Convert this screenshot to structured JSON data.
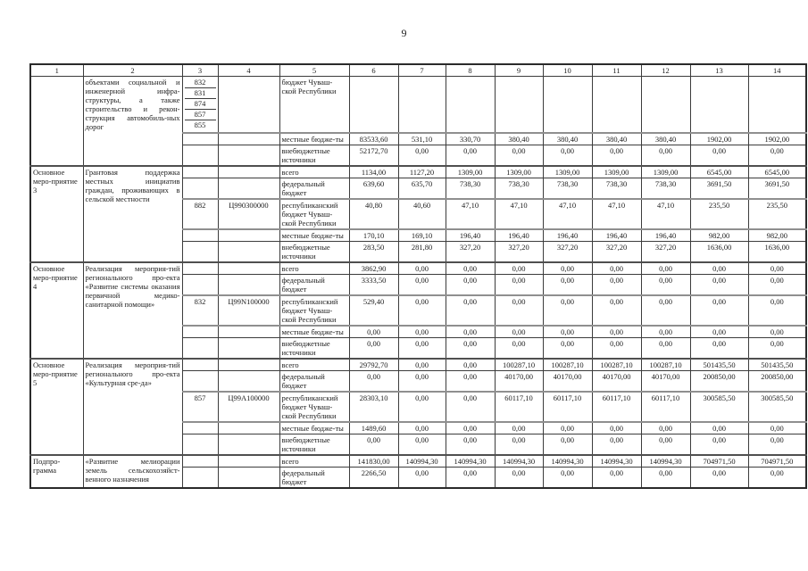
{
  "page": {
    "number": "9"
  },
  "table": {
    "column_headers": [
      "1",
      "2",
      "3",
      "4",
      "5",
      "6",
      "7",
      "8",
      "9",
      "10",
      "11",
      "12",
      "13",
      "14"
    ],
    "sections": [
      {
        "col1": "",
        "col2": "объектами социальной и инженерной инфра-структуры, а также строительство и рекон-струкция автомобиль-ных дорог",
        "rows": [
          {
            "stack": [
              "832",
              "831",
              "874",
              "857",
              "855"
            ],
            "code": "",
            "label": "бюджет Чуваш-ской Республики",
            "values": [
              "",
              "",
              "",
              "",
              "",
              "",
              "",
              "",
              ""
            ]
          },
          {
            "grbs": "",
            "code": "",
            "label": "местные бюдже-ты",
            "values": [
              "83533,60",
              "531,10",
              "330,70",
              "380,40",
              "380,40",
              "380,40",
              "380,40",
              "1902,00",
              "1902,00"
            ]
          },
          {
            "grbs": "",
            "code": "",
            "label": "внебюджетные источники",
            "values": [
              "52172,70",
              "0,00",
              "0,00",
              "0,00",
              "0,00",
              "0,00",
              "0,00",
              "0,00",
              "0,00"
            ]
          }
        ]
      },
      {
        "col1": "Основное меро-приятие 3",
        "col2": "Грантовая поддержка местных инициатив граждан, проживающих в сельской местности",
        "rows": [
          {
            "grbs": "",
            "code": "",
            "label": "всего",
            "values": [
              "1134,00",
              "1127,20",
              "1309,00",
              "1309,00",
              "1309,00",
              "1309,00",
              "1309,00",
              "6545,00",
              "6545,00"
            ]
          },
          {
            "grbs": "",
            "code": "",
            "label": "федеральный бюджет",
            "values": [
              "639,60",
              "635,70",
              "738,30",
              "738,30",
              "738,30",
              "738,30",
              "738,30",
              "3691,50",
              "3691,50"
            ]
          },
          {
            "grbs": "882",
            "code": "Ц990300000",
            "label": "республиканский бюджет Чуваш-ской Республики",
            "values": [
              "40,80",
              "40,60",
              "47,10",
              "47,10",
              "47,10",
              "47,10",
              "47,10",
              "235,50",
              "235,50"
            ]
          },
          {
            "grbs": "",
            "code": "",
            "label": "местные бюдже-ты",
            "values": [
              "170,10",
              "169,10",
              "196,40",
              "196,40",
              "196,40",
              "196,40",
              "196,40",
              "982,00",
              "982,00"
            ]
          },
          {
            "grbs": "",
            "code": "",
            "label": "внебюджетные источники",
            "values": [
              "283,50",
              "281,80",
              "327,20",
              "327,20",
              "327,20",
              "327,20",
              "327,20",
              "1636,00",
              "1636,00"
            ]
          }
        ]
      },
      {
        "col1": "Основное меро-приятие 4",
        "col2": "Реализация мероприя-тий регионального про-екта «Развитие системы оказания первичной медико-санитарной помощи»",
        "rows": [
          {
            "grbs": "",
            "code": "",
            "label": "всего",
            "values": [
              "3862,90",
              "0,00",
              "0,00",
              "0,00",
              "0,00",
              "0,00",
              "0,00",
              "0,00",
              "0,00"
            ]
          },
          {
            "grbs": "",
            "code": "",
            "label": "федеральный бюджет",
            "values": [
              "3333,50",
              "0,00",
              "0,00",
              "0,00",
              "0,00",
              "0,00",
              "0,00",
              "0,00",
              "0,00"
            ]
          },
          {
            "grbs": "832",
            "code": "Ц99N100000",
            "label": "республиканский бюджет Чуваш-ской Республики",
            "values": [
              "529,40",
              "0,00",
              "0,00",
              "0,00",
              "0,00",
              "0,00",
              "0,00",
              "0,00",
              "0,00"
            ]
          },
          {
            "grbs": "",
            "code": "",
            "label": "местные бюдже-ты",
            "values": [
              "0,00",
              "0,00",
              "0,00",
              "0,00",
              "0,00",
              "0,00",
              "0,00",
              "0,00",
              "0,00"
            ]
          },
          {
            "grbs": "",
            "code": "",
            "label": "внебюджетные источники",
            "values": [
              "0,00",
              "0,00",
              "0,00",
              "0,00",
              "0,00",
              "0,00",
              "0,00",
              "0,00",
              "0,00"
            ]
          }
        ]
      },
      {
        "col1": "Основное меро-приятие 5",
        "col2": "Реализация мероприя-тий регионального про-екта «Культурная сре-да»",
        "rows": [
          {
            "grbs": "",
            "code": "",
            "label": "всего",
            "values": [
              "29792,70",
              "0,00",
              "0,00",
              "100287,10",
              "100287,10",
              "100287,10",
              "100287,10",
              "501435,50",
              "501435,50"
            ]
          },
          {
            "grbs": "",
            "code": "",
            "label": "федеральный бюджет",
            "values": [
              "0,00",
              "0,00",
              "0,00",
              "40170,00",
              "40170,00",
              "40170,00",
              "40170,00",
              "200850,00",
              "200850,00"
            ]
          },
          {
            "grbs": "857",
            "code": "Ц99А100000",
            "label": "республиканский бюджет Чуваш-ской Республики",
            "values": [
              "28303,10",
              "0,00",
              "0,00",
              "60117,10",
              "60117,10",
              "60117,10",
              "60117,10",
              "300585,50",
              "300585,50"
            ]
          },
          {
            "grbs": "",
            "code": "",
            "label": "местные бюдже-ты",
            "values": [
              "1489,60",
              "0,00",
              "0,00",
              "0,00",
              "0,00",
              "0,00",
              "0,00",
              "0,00",
              "0,00"
            ]
          },
          {
            "grbs": "",
            "code": "",
            "label": "внебюджетные источники",
            "values": [
              "0,00",
              "0,00",
              "0,00",
              "0,00",
              "0,00",
              "0,00",
              "0,00",
              "0,00",
              "0,00"
            ]
          }
        ]
      },
      {
        "col1": "Подпро-грамма",
        "col2": "«Развитие мелиорации земель сельскохозяйст-венного назначения",
        "rows": [
          {
            "grbs": "",
            "code": "",
            "label": "всего",
            "values": [
              "141830,00",
              "140994,30",
              "140994,30",
              "140994,30",
              "140994,30",
              "140994,30",
              "140994,30",
              "704971,50",
              "704971,50"
            ]
          },
          {
            "grbs": "",
            "code": "",
            "label": "федеральный бюджет",
            "values": [
              "2266,50",
              "0,00",
              "0,00",
              "0,00",
              "0,00",
              "0,00",
              "0,00",
              "0,00",
              "0,00"
            ]
          }
        ]
      }
    ]
  }
}
